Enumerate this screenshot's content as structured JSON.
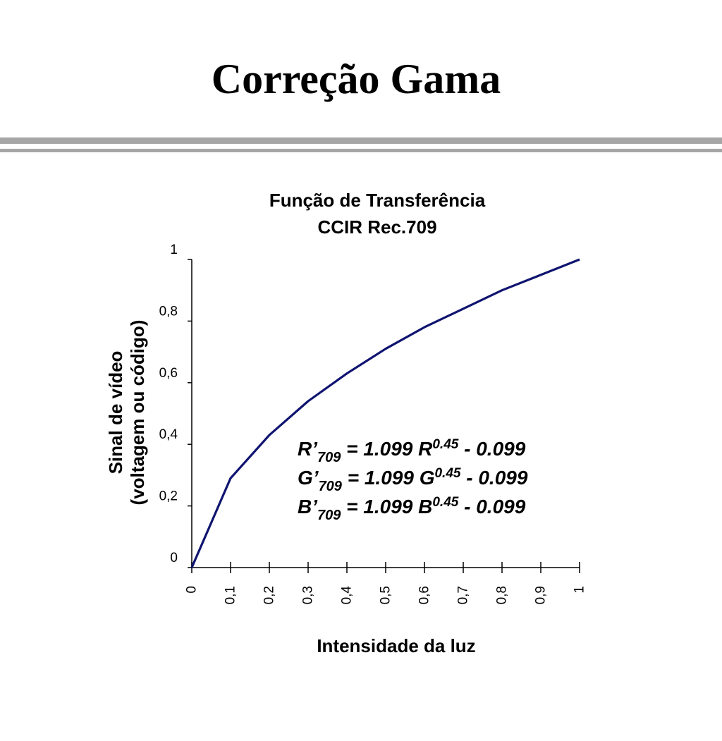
{
  "slide": {
    "title": "Correção Gama"
  },
  "colors": {
    "curve": "#0f1470",
    "axis": "#000000",
    "rule": "#a6a6a6"
  },
  "chart_data": {
    "type": "line",
    "title": "Função de Transferência",
    "subtitle": "CCIR Rec.709",
    "xlabel": "Intensidade da luz",
    "ylabel": [
      "Sinal de vídeo",
      "(voltagem ou código)"
    ],
    "xlim": [
      0,
      1
    ],
    "ylim": [
      0,
      1
    ],
    "x_ticks": [
      "0",
      "0,1",
      "0,2",
      "0,3",
      "0,4",
      "0,5",
      "0,6",
      "0,7",
      "0,8",
      "0,9",
      "1"
    ],
    "y_ticks": [
      "0",
      "0,2",
      "0,4",
      "0,6",
      "0,8",
      "1"
    ],
    "grid": false,
    "series": [
      {
        "x": [
          0,
          0.1,
          0.2,
          0.3,
          0.4,
          0.5,
          0.6,
          0.7,
          0.8,
          0.9,
          1.0
        ],
        "values": [
          0,
          0.29,
          0.43,
          0.54,
          0.63,
          0.71,
          0.78,
          0.84,
          0.9,
          0.95,
          1.0
        ]
      }
    ],
    "annotations": [
      {
        "lhs": "R’",
        "sub": "709",
        "mid": " = 1.099 R",
        "sup": "0.45",
        "tail": " - 0.099"
      },
      {
        "lhs": "G’",
        "sub": "709",
        "mid": " = 1.099 G",
        "sup": "0.45",
        "tail": " - 0.099"
      },
      {
        "lhs": "B’",
        "sub": "709",
        "mid": " = 1.099 B",
        "sup": "0.45",
        "tail": " - 0.099"
      }
    ]
  }
}
